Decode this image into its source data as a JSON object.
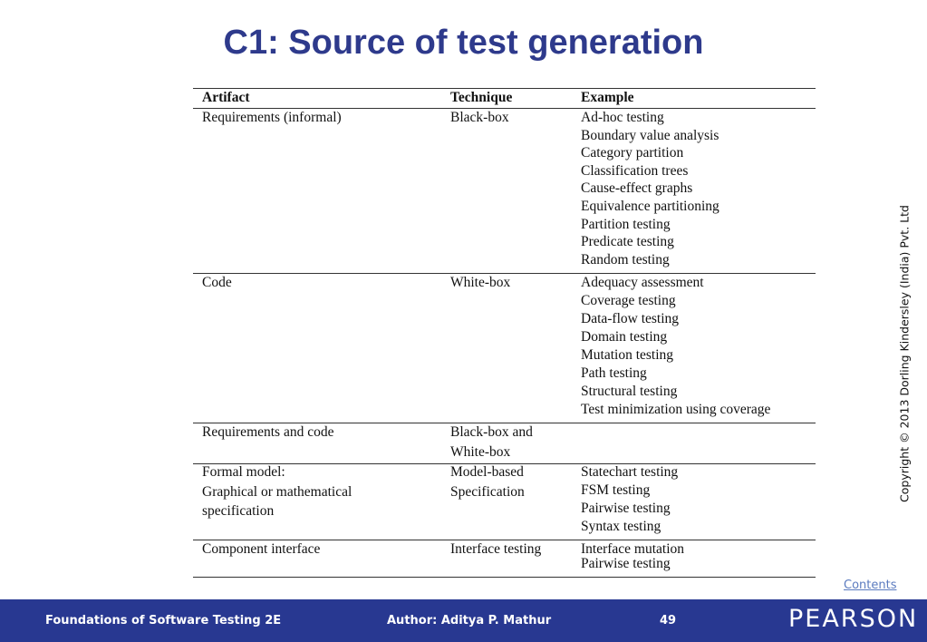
{
  "title": "C1: Source of test generation",
  "table": {
    "header": [
      "Artifact",
      "Technique",
      "Example"
    ],
    "rows": [
      {
        "artifact": [
          "Requirements (informal)"
        ],
        "technique": [
          "Black-box"
        ],
        "examples": [
          "Ad-hoc testing",
          "Boundary value analysis",
          "Category partition",
          "Classification trees",
          "Cause-effect graphs",
          "Equivalence partitioning",
          "Partition testing",
          "Predicate testing",
          "Random testing"
        ]
      },
      {
        "artifact": [
          "Code"
        ],
        "technique": [
          "White-box"
        ],
        "examples": [
          "Adequacy assessment",
          "Coverage testing",
          "Data-flow testing",
          "Domain testing",
          "Mutation testing",
          "Path testing",
          "Structural testing",
          "Test minimization using coverage"
        ]
      },
      {
        "artifact": [
          "Requirements and code"
        ],
        "technique": [
          "Black-box and",
          "White-box"
        ],
        "examples": []
      },
      {
        "artifact": [
          "Formal model:",
          "Graphical or mathematical",
          "specification"
        ],
        "technique": [
          "Model-based",
          "Specification"
        ],
        "examples": [
          "Statechart testing",
          "FSM testing",
          "Pairwise testing",
          "Syntax testing"
        ]
      },
      {
        "artifact": [
          "Component interface"
        ],
        "technique": [
          "Interface testing"
        ],
        "examples": [
          "Interface mutation",
          "Pairwise testing"
        ]
      }
    ]
  },
  "copyright": "Copyright © 2013 Dorling Kindersley (India) Pvt. Ltd",
  "contents_link": "Contents",
  "footer": {
    "book": "Foundations of Software Testing 2E",
    "author": "Author: Aditya P. Mathur",
    "page": "49",
    "logo": "PEARSON"
  }
}
